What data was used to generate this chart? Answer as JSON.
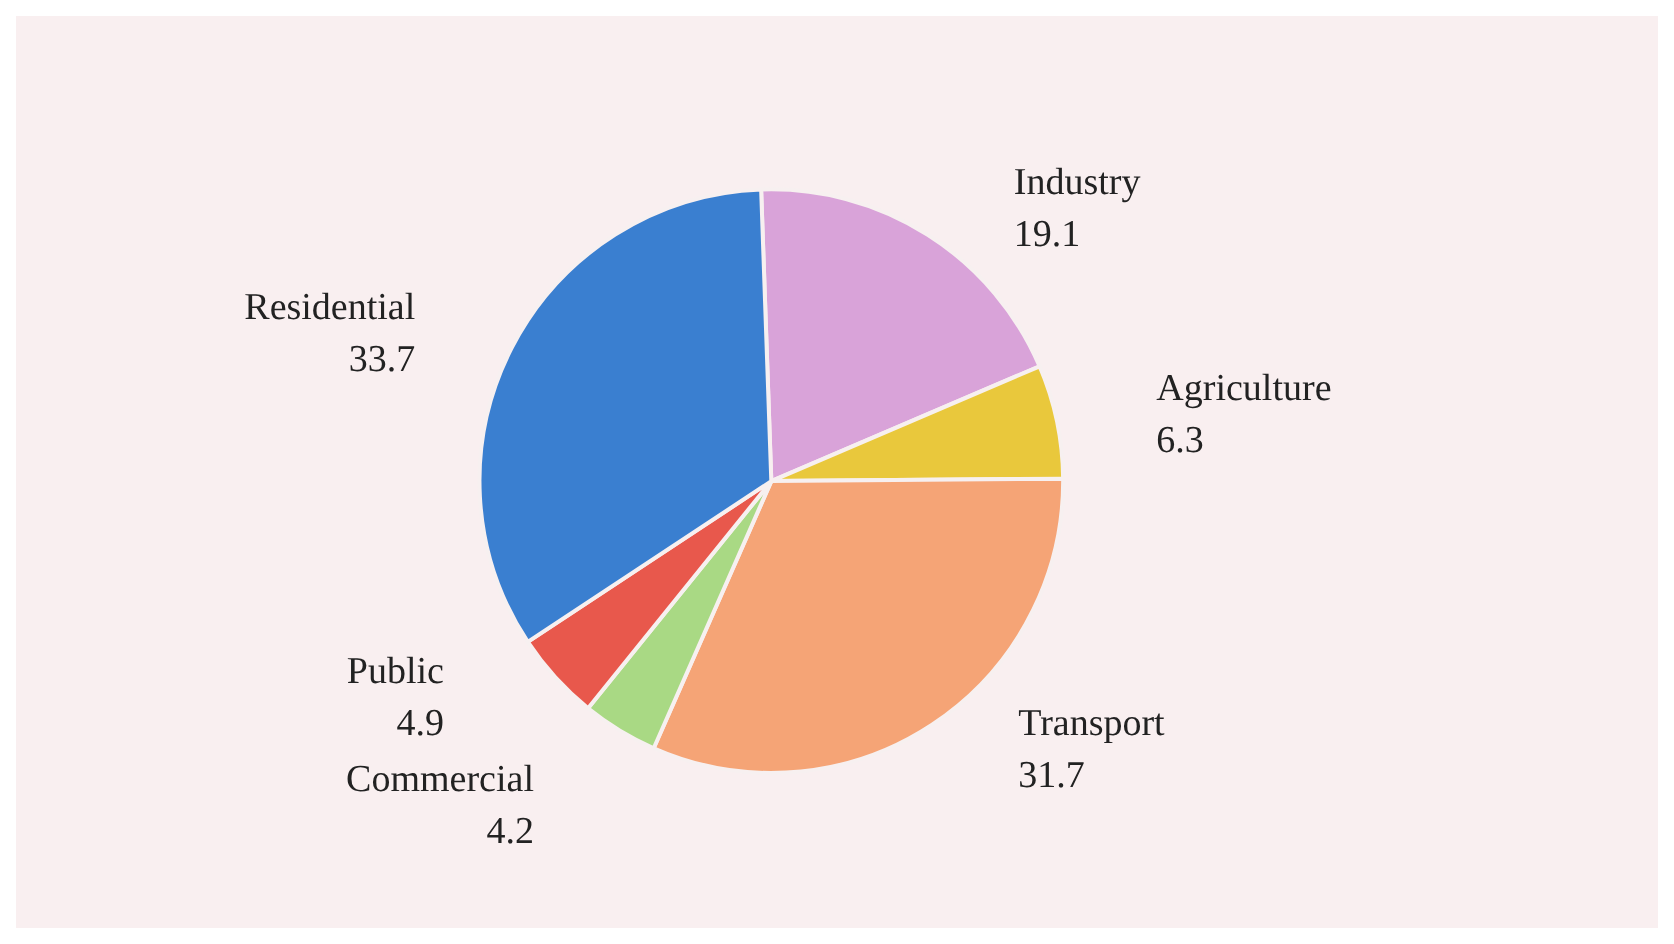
{
  "chart_data": {
    "type": "pie",
    "categories": [
      "Industry",
      "Agriculture",
      "Transport",
      "Commercial",
      "Public",
      "Residential"
    ],
    "values": [
      19.1,
      6.3,
      31.7,
      4.2,
      4.9,
      33.7
    ],
    "colors": [
      "#d9a3d9",
      "#e9c83c",
      "#f5a476",
      "#a9d984",
      "#e8584c",
      "#3a7fd0"
    ],
    "data_labels": true
  }
}
